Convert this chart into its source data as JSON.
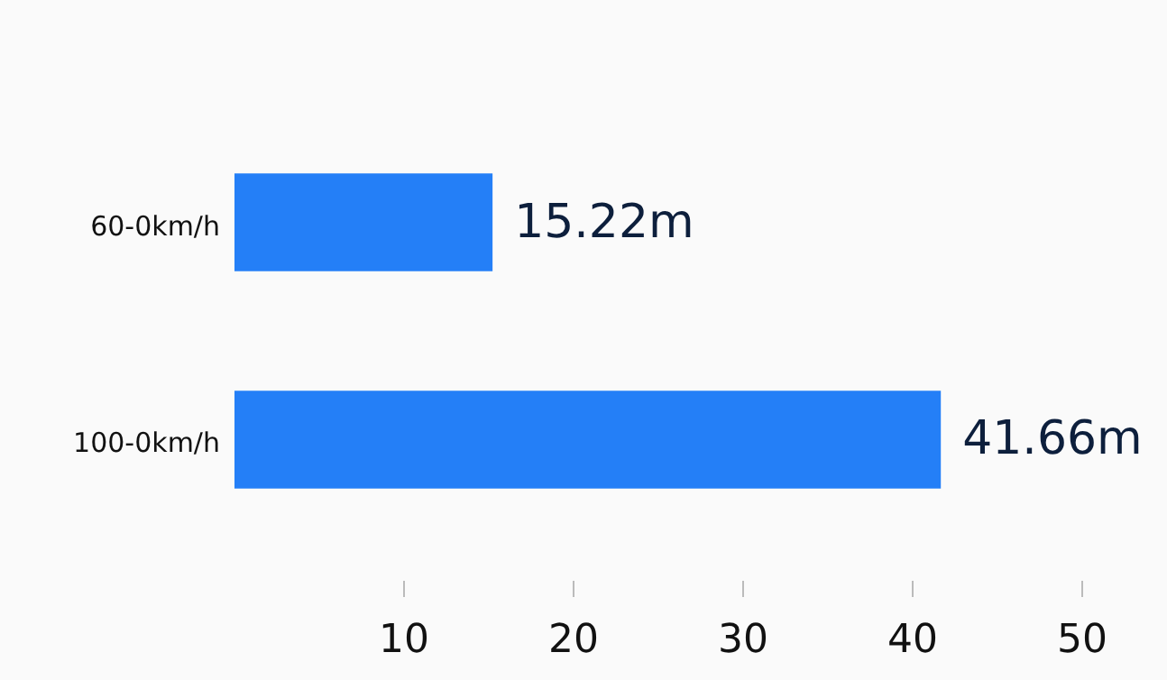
{
  "chart_data": {
    "type": "bar",
    "orientation": "horizontal",
    "categories": [
      "60-0km/h",
      "100-0km/h"
    ],
    "values": [
      15.22,
      41.66
    ],
    "value_labels": [
      "15.22m",
      "41.66m"
    ],
    "color": "#247ff7",
    "xlim": [
      0,
      50
    ],
    "xticks": [
      10,
      20,
      30,
      40,
      50
    ],
    "grid": false
  }
}
